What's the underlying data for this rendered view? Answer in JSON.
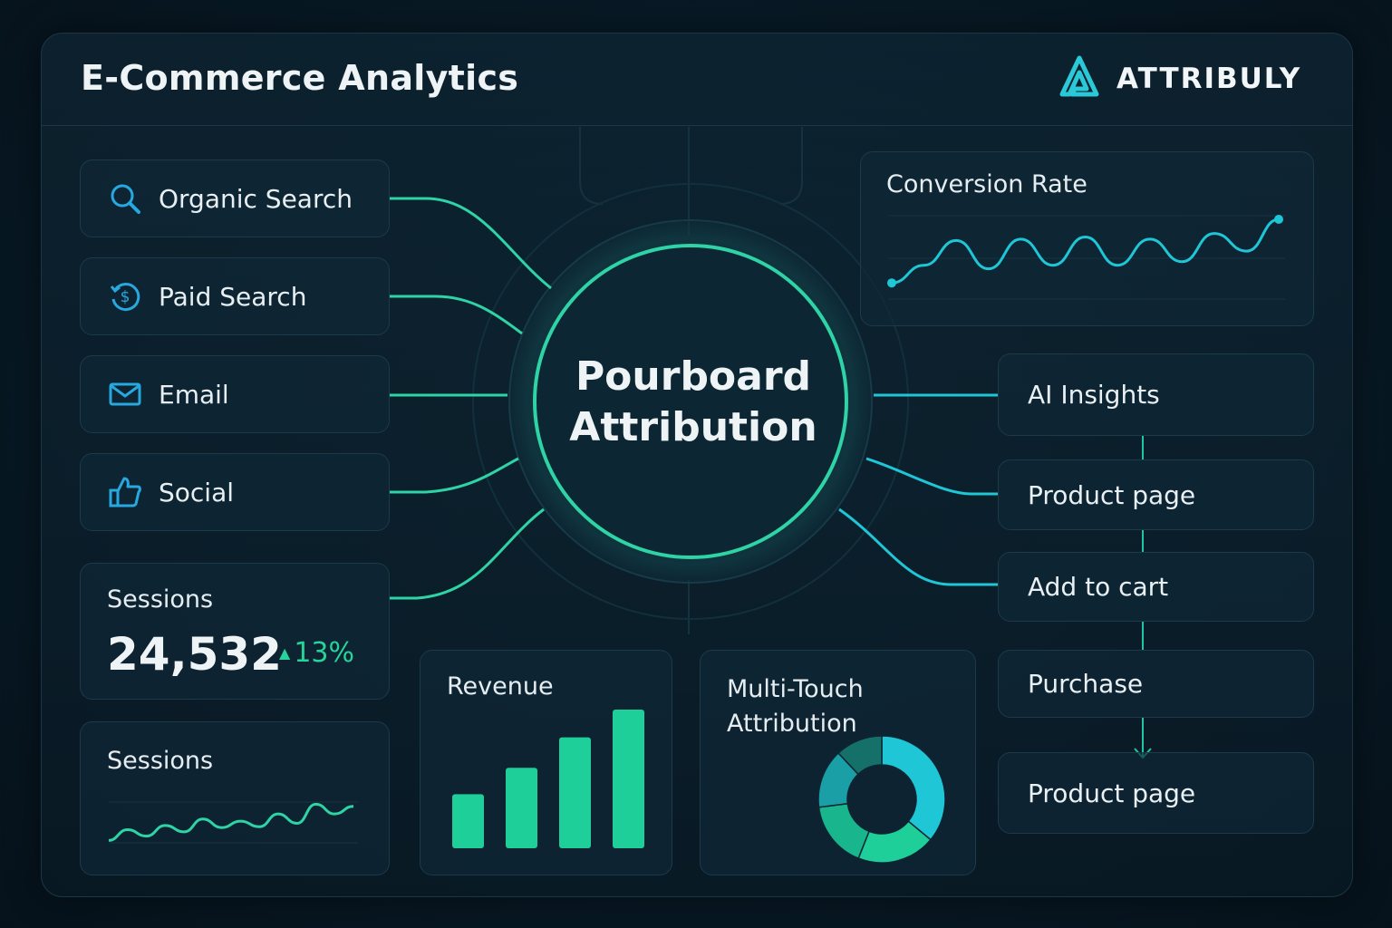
{
  "header": {
    "title": "E-Commerce Analytics",
    "brand_name": "ATTRIBULY",
    "brand_logo": "attribuly-logo"
  },
  "channels": [
    {
      "label": "Organic Search",
      "icon": "search-icon"
    },
    {
      "label": "Paid Search",
      "icon": "dollar-cycle-icon"
    },
    {
      "label": "Email",
      "icon": "mail-icon"
    },
    {
      "label": "Social",
      "icon": "thumbs-up-icon"
    }
  ],
  "hub": {
    "line1": "Pourboard",
    "line2": "Attribution"
  },
  "sessions_kpi": {
    "title": "Sessions",
    "value": "24,532",
    "change": "13%",
    "trend": "up"
  },
  "sessions_chart": {
    "title": "Sessions"
  },
  "revenue": {
    "title": "Revenue"
  },
  "multi_touch": {
    "title_line1": "Multi-Touch",
    "title_line2": "Attribution"
  },
  "conversion_rate": {
    "title": "Conversion Rate"
  },
  "funnel": [
    {
      "label": "AI Insights"
    },
    {
      "label": "Product page"
    },
    {
      "label": "Add to cart"
    },
    {
      "label": "Purchase"
    },
    {
      "label": "Product page"
    }
  ],
  "colors": {
    "accent_teal": "#2ed3a6",
    "accent_cyan": "#1fc6d6",
    "positive": "#27d39a"
  },
  "chart_data": [
    {
      "type": "line",
      "title": "Conversion Rate",
      "series": [
        {
          "values": [
            0.1,
            0.35,
            0.7,
            0.3,
            0.72,
            0.35,
            0.75,
            0.35,
            0.72,
            0.4,
            0.8,
            0.55,
            1.0
          ]
        }
      ]
    },
    {
      "type": "line",
      "title": "Sessions",
      "series": [
        {
          "values": [
            0.1,
            0.35,
            0.2,
            0.45,
            0.3,
            0.6,
            0.4,
            0.55,
            0.42,
            0.72,
            0.5,
            0.95,
            0.72,
            0.9
          ]
        }
      ]
    },
    {
      "type": "bar",
      "title": "Revenue",
      "values": [
        0.39,
        0.58,
        0.8,
        1.0
      ]
    },
    {
      "type": "pie",
      "title": "Multi-Touch Attribution",
      "values": [
        36,
        20,
        17,
        15,
        12
      ]
    }
  ]
}
